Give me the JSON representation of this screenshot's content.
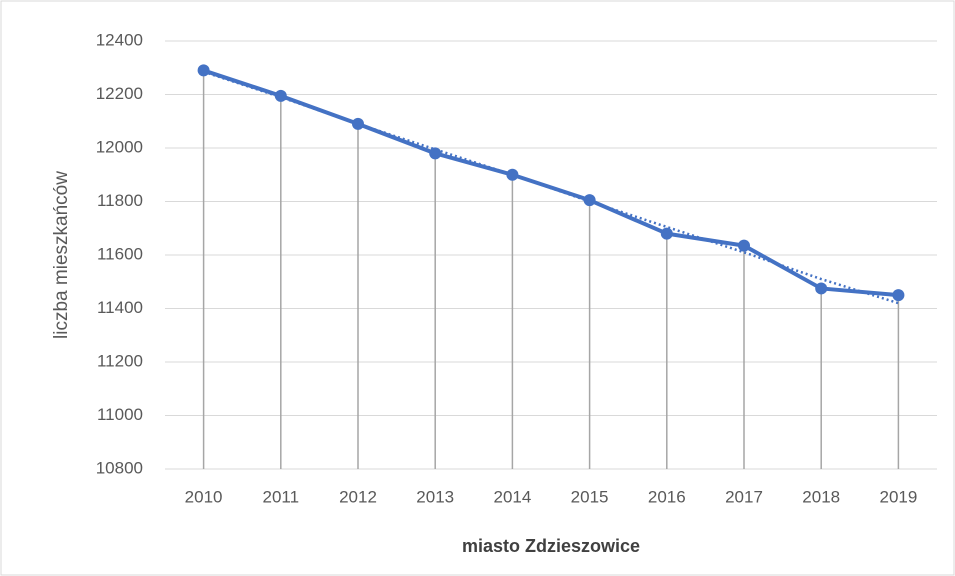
{
  "chart_data": {
    "type": "line",
    "x_label": "miasto Zdzieszowice",
    "y_label": "liczba mieszkańców",
    "categories": [
      "2010",
      "2011",
      "2012",
      "2013",
      "2014",
      "2015",
      "2016",
      "2017",
      "2018",
      "2019"
    ],
    "series": [
      {
        "color": "#4472c4",
        "values": [
          12290,
          12195,
          12090,
          11980,
          11900,
          11805,
          11680,
          11635,
          11475,
          11450
        ]
      }
    ],
    "trendline": {
      "color": "#4472c4",
      "values": [
        12285,
        12190,
        12090,
        11995,
        11900,
        11800,
        11705,
        11610,
        11510,
        11420
      ]
    },
    "drop_lines": true,
    "ylim": [
      10800,
      12400
    ],
    "yticks": [
      10800,
      11000,
      11200,
      11400,
      11600,
      11800,
      12000,
      12200,
      12400
    ],
    "grid": true
  }
}
